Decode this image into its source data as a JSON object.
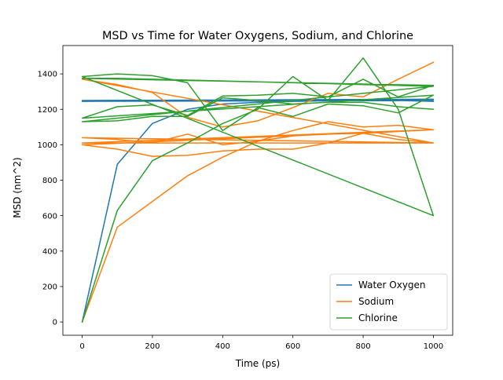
{
  "chart_data": {
    "type": "line",
    "title": "MSD vs Time for Water Oxygens, Sodium, and Chlorine",
    "xlabel": "Time (ps)",
    "ylabel": "MSD (nm^2)",
    "xlim": [
      -55,
      1055
    ],
    "ylim": [
      -75,
      1560
    ],
    "xticks": [
      0,
      200,
      400,
      600,
      800,
      1000
    ],
    "yticks": [
      0,
      200,
      400,
      600,
      800,
      1000,
      1200,
      1400
    ],
    "legend_position": "lower-right",
    "grid": false,
    "series": [
      {
        "name": "Water Oxygen",
        "color": "#1f77b4",
        "x": [
          0,
          100,
          200,
          300,
          400,
          500,
          600,
          700,
          800,
          900,
          1000,
          0,
          100,
          200,
          300,
          400,
          500,
          600,
          700,
          800,
          900,
          1000,
          0,
          100,
          200,
          300,
          400,
          500,
          600,
          700,
          800,
          900,
          1000
        ],
        "y": [
          0,
          890,
          1120,
          1200,
          1230,
          1240,
          1245,
          1248,
          1250,
          1252,
          1250,
          1245,
          1246,
          1248,
          1250,
          1251,
          1252,
          1253,
          1254,
          1255,
          1256,
          1257,
          1250,
          1250,
          1249,
          1250,
          1251,
          1250,
          1249,
          1250,
          1251,
          1250,
          1245
        ]
      },
      {
        "name": "Sodium",
        "color": "#ff7f0e",
        "x": [
          0,
          100,
          200,
          300,
          400,
          500,
          600,
          700,
          800,
          900,
          1000,
          0,
          100,
          200,
          300,
          400,
          500,
          600,
          700,
          800,
          900,
          1000,
          0,
          100,
          200,
          300,
          400,
          500,
          600,
          700,
          800,
          900,
          1000,
          0,
          100,
          200,
          300,
          400,
          500,
          600,
          700,
          800,
          900,
          1000,
          0,
          100,
          200,
          300,
          400,
          500,
          600,
          700,
          800,
          900,
          1000
        ],
        "y": [
          0,
          535,
          680,
          825,
          930,
          1020,
          1050,
          1060,
          1065,
          1075,
          1085,
          1000,
          975,
          935,
          940,
          965,
          975,
          975,
          1010,
          1065,
          1030,
          1010,
          1040,
          1030,
          1010,
          1060,
          1000,
          1020,
          1080,
          1130,
          1100,
          1110,
          1085,
          1010,
          1010,
          1010,
          1010,
          1010,
          1010,
          1010,
          1010,
          1010,
          1010,
          1010,
          1370,
          1340,
          1295,
          1155,
          1100,
          1135,
          1210,
          1290,
          1270,
          1370,
          1465
        ]
      },
      {
        "name": "Chlorine",
        "color": "#2ca02c",
        "x": [
          0,
          100,
          200,
          300,
          400,
          500,
          600,
          700,
          800,
          900,
          1000,
          0,
          100,
          200,
          300,
          400,
          500,
          600,
          700,
          800,
          900,
          1000,
          0,
          100,
          200,
          300,
          400,
          500,
          600,
          700,
          800,
          900,
          1000,
          0,
          100,
          200,
          300,
          400,
          500,
          600,
          700,
          800,
          900,
          1000,
          0,
          100,
          200,
          300,
          400,
          500,
          600,
          700,
          800,
          900,
          1000
        ],
        "y": [
          0,
          630,
          910,
          1010,
          1120,
          1200,
          1385,
          1250,
          1490,
          1200,
          600,
          1385,
          1400,
          1390,
          1350,
          1080,
          1210,
          1160,
          1230,
          1220,
          1180,
          1280,
          1150,
          1215,
          1225,
          1165,
          1275,
          1280,
          1290,
          1270,
          1370,
          1270,
          1335,
          1375,
          1375,
          1370,
          1365,
          1360,
          1355,
          1350,
          1345,
          1340,
          1335,
          1330,
          1130,
          1135,
          1160,
          1160,
          1265,
          1250,
          1230,
          1240,
          1240,
          1215,
          1200
        ]
      }
    ]
  }
}
